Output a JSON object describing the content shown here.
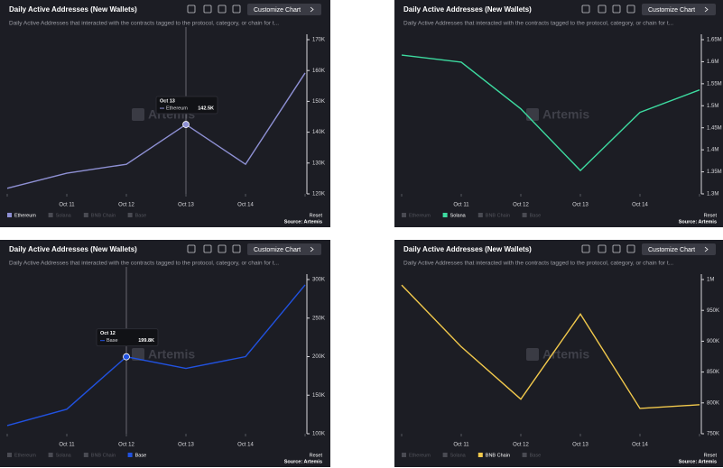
{
  "chart_data": [
    {
      "type": "line",
      "title": "Daily Active Addresses (New Wallets)",
      "subtitle": "Daily Active Addresses that interacted with the contracts tagged to the protocol, category, or chain for t...",
      "button": "Customize Chart",
      "watermark": "Artemis",
      "reset": "Reset",
      "source": "Source: Artemis",
      "categories": [
        null,
        "Oct 11",
        "Oct 12",
        "Oct 13",
        "Oct 14",
        null
      ],
      "series": [
        {
          "name": "Ethereum",
          "color": "#8e90d4",
          "values": [
            121800,
            126700,
            129600,
            142500,
            129600,
            159200
          ],
          "value_labels": [
            null,
            null,
            null,
            "142.5K",
            null,
            null
          ]
        }
      ],
      "legend": [
        "Ethereum",
        "Solana",
        "BNB Chain",
        "Base"
      ],
      "ylim": [
        120000,
        170000
      ],
      "yticks": [
        {
          "value": 120000,
          "label": "120K"
        },
        {
          "value": 130000,
          "label": "130K"
        },
        {
          "value": 140000,
          "label": "140K"
        },
        {
          "value": 150000,
          "label": "150K"
        },
        {
          "value": 160000,
          "label": "160K"
        },
        {
          "value": 170000,
          "label": "170K"
        }
      ]
    },
    {
      "type": "line",
      "title": "Daily Active Addresses (New Wallets)",
      "subtitle": "Daily Active Addresses that interacted with the contracts tagged to the protocol, category, or chain for t...",
      "button": "Customize Chart",
      "watermark": "Artemis",
      "reset": "Reset",
      "source": "Source: Artemis",
      "categories": [
        null,
        "Oct 11",
        "Oct 12",
        "Oct 13",
        "Oct 14",
        null
      ],
      "series": [
        {
          "name": "Solana",
          "color": "#3ddba0",
          "values": [
            1615000,
            1599000,
            1493000,
            1353000,
            1485000,
            1536000
          ]
        }
      ],
      "legend": [
        "Ethereum",
        "Solana",
        "BNB Chain",
        "Base"
      ],
      "ylim": [
        1300000,
        1650000
      ],
      "yticks": [
        {
          "value": 1300000,
          "label": "1.3M"
        },
        {
          "value": 1350000,
          "label": "1.35M"
        },
        {
          "value": 1400000,
          "label": "1.4M"
        },
        {
          "value": 1450000,
          "label": "1.45M"
        },
        {
          "value": 1500000,
          "label": "1.5M"
        },
        {
          "value": 1550000,
          "label": "1.55M"
        },
        {
          "value": 1600000,
          "label": "1.6M"
        },
        {
          "value": 1650000,
          "label": "1.65M"
        }
      ]
    },
    {
      "type": "line",
      "title": "Daily Active Addresses (New Wallets)",
      "subtitle": "Daily Active Addresses that interacted with the contracts tagged to the protocol, category, or chain for t...",
      "button": "Customize Chart",
      "watermark": "Artemis",
      "reset": "Reset",
      "source": "Source: Artemis",
      "categories": [
        null,
        "Oct 11",
        "Oct 12",
        "Oct 13",
        "Oct 14",
        null
      ],
      "series": [
        {
          "name": "Base",
          "color": "#2152e0",
          "values": [
            110600,
            131800,
            199800,
            184700,
            200000,
            293000
          ],
          "value_labels": [
            null,
            null,
            "199.8K",
            null,
            null,
            null
          ]
        }
      ],
      "legend": [
        "Ethereum",
        "Solana",
        "BNB Chain",
        "Base"
      ],
      "ylim": [
        100000,
        300000
      ],
      "yticks": [
        {
          "value": 100000,
          "label": "100K"
        },
        {
          "value": 150000,
          "label": "150K"
        },
        {
          "value": 200000,
          "label": "200K"
        },
        {
          "value": 250000,
          "label": "250K"
        },
        {
          "value": 300000,
          "label": "300K"
        }
      ]
    },
    {
      "type": "line",
      "title": "Daily Active Addresses (New Wallets)",
      "subtitle": "Daily Active Addresses that interacted with the contracts tagged to the protocol, category, or chain for t...",
      "button": "Customize Chart",
      "watermark": "Artemis",
      "reset": "Reset",
      "source": "Source: Artemis",
      "categories": [
        null,
        "Oct 11",
        "Oct 12",
        "Oct 13",
        "Oct 14",
        null
      ],
      "series": [
        {
          "name": "BNB Chain",
          "color": "#f2c94c",
          "values": [
            991000,
            891000,
            806000,
            944000,
            791000,
            797000
          ]
        }
      ],
      "legend": [
        "Ethereum",
        "Solana",
        "BNB Chain",
        "Base"
      ],
      "ylim": [
        750000,
        1000000
      ],
      "yticks": [
        {
          "value": 750000,
          "label": "750K"
        },
        {
          "value": 800000,
          "label": "800K"
        },
        {
          "value": 850000,
          "label": "850K"
        },
        {
          "value": 900000,
          "label": "900K"
        },
        {
          "value": 950000,
          "label": "950K"
        },
        {
          "value": 1000000,
          "label": "1M"
        }
      ]
    }
  ]
}
